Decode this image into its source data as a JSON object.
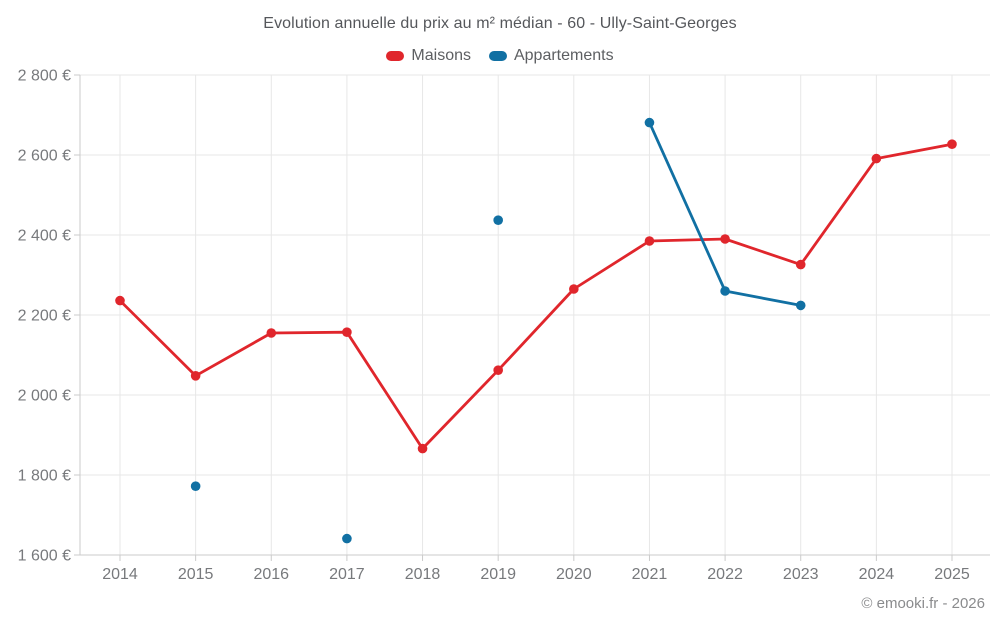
{
  "chart_data": {
    "type": "line",
    "title": "Evolution annuelle du prix au m² médian - 60 - Ully-Saint-Georges",
    "x_labels": [
      "2014",
      "2015",
      "2016",
      "2017",
      "2018",
      "2019",
      "2020",
      "2021",
      "2022",
      "2023",
      "2024",
      "2025"
    ],
    "y_tick_labels": [
      "1 600 €",
      "1 800 €",
      "2 000 €",
      "2 200 €",
      "2 400 €",
      "2 600 €",
      "2 800 €"
    ],
    "ylim": [
      1600,
      2800
    ],
    "ytick_step": 200,
    "grid": true,
    "legend_position": "top",
    "xlabel": "",
    "ylabel": "",
    "series": [
      {
        "name": "Maisons",
        "color": "#e0262c",
        "values": [
          2236,
          2048,
          2155,
          2157,
          1866,
          2062,
          2265,
          2385,
          2390,
          2326,
          2591,
          2627
        ]
      },
      {
        "name": "Appartements",
        "color": "#1170a3",
        "values": [
          null,
          1772,
          null,
          1641,
          null,
          2437,
          null,
          2681,
          2260,
          2224,
          null,
          null
        ]
      }
    ]
  },
  "footer": {
    "copyright": "© emooki.fr - 2026"
  }
}
